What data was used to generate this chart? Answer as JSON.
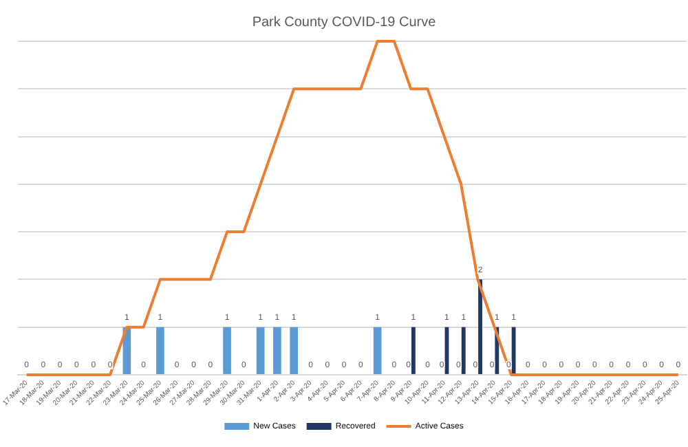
{
  "chart_data": {
    "type": "bar",
    "title": "Park County COVID-19 Curve",
    "categories": [
      "17-Mar-20",
      "18-Mar-20",
      "19-Mar-20",
      "20-Mar-20",
      "21-Mar-20",
      "22-Mar-20",
      "23-Mar-20",
      "24-Mar-20",
      "25-Mar-20",
      "26-Mar-20",
      "27-Mar-20",
      "28-Mar-20",
      "29-Mar-20",
      "30-Mar-20",
      "31-Mar-20",
      "1-Apr-20",
      "2-Apr-20",
      "3-Apr-20",
      "4-Apr-20",
      "5-Apr-20",
      "6-Apr-20",
      "7-Apr-20",
      "8-Apr-20",
      "9-Apr-20",
      "10-Apr-20",
      "11-Apr-20",
      "12-Apr-20",
      "13-Apr-20",
      "14-Apr-20",
      "15-Apr-20",
      "16-Apr-20",
      "17-Apr-20",
      "18-Apr-20",
      "19-Apr-20",
      "20-Apr-20",
      "21-Apr-20",
      "22-Apr-20",
      "23-Apr-20",
      "24-Apr-20",
      "25-Apr-20"
    ],
    "series": [
      {
        "name": "New Cases",
        "color": "#5b9bd5",
        "values": [
          0,
          0,
          0,
          0,
          0,
          0,
          1,
          0,
          1,
          0,
          0,
          0,
          1,
          0,
          1,
          1,
          1,
          0,
          0,
          0,
          0,
          1,
          0,
          0,
          0,
          0,
          0,
          0,
          0,
          0,
          0,
          0,
          0,
          0,
          0,
          0,
          0,
          0,
          0,
          0
        ],
        "value_labels": [
          "0",
          "0",
          "0",
          "0",
          "0",
          "0",
          "1",
          "0",
          "1",
          "0",
          "0",
          "0",
          "1",
          "0",
          "1",
          "1",
          "1",
          "0",
          "0",
          "0",
          "0",
          "1",
          "0",
          "0",
          "0",
          "0",
          "0",
          "0",
          "0",
          "0",
          "0",
          "0",
          "0",
          "0",
          "0",
          "0",
          "0",
          "0",
          "0",
          "0"
        ]
      },
      {
        "name": "Recovered",
        "color": "#1f3864",
        "values": [
          null,
          null,
          null,
          null,
          null,
          null,
          null,
          null,
          null,
          null,
          null,
          null,
          null,
          null,
          null,
          null,
          null,
          null,
          null,
          null,
          null,
          null,
          null,
          1,
          null,
          1,
          1,
          2,
          1,
          1,
          null,
          null,
          null,
          null,
          null,
          null,
          null,
          null,
          null,
          null
        ],
        "value_labels": [
          null,
          null,
          null,
          null,
          null,
          null,
          null,
          null,
          null,
          null,
          null,
          null,
          null,
          null,
          null,
          null,
          null,
          null,
          null,
          null,
          null,
          null,
          null,
          "1",
          null,
          "1",
          "1",
          "2",
          "1",
          "1",
          null,
          null,
          null,
          null,
          null,
          null,
          null,
          null,
          null,
          null
        ]
      },
      {
        "name": "Active Cases",
        "type": "line",
        "color": "#ed7d31",
        "values": [
          0,
          0,
          0,
          0,
          0,
          0,
          1,
          1,
          2,
          2,
          2,
          2,
          3,
          3,
          4,
          5,
          6,
          6,
          6,
          6,
          6,
          7,
          7,
          6,
          6,
          5,
          4,
          2,
          1,
          0,
          0,
          0,
          0,
          0,
          0,
          0,
          0,
          0,
          0,
          0
        ]
      }
    ],
    "tick_labels": "x",
    "grid": "y",
    "legend": "bottom",
    "marker": "none",
    "line_style": "solid"
  }
}
